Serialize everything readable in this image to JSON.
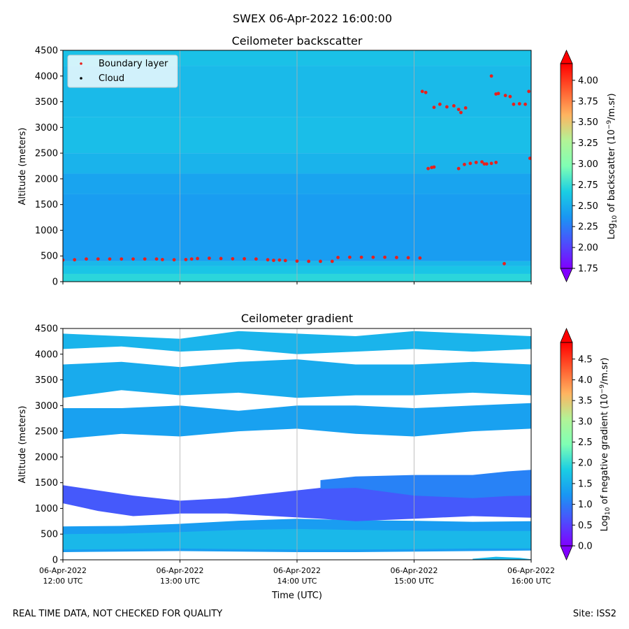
{
  "figure": {
    "suptitle": "SWEX 06-Apr-2022 16:00:00",
    "footer_left": "REAL TIME DATA, NOT CHECKED FOR QUALITY",
    "footer_right": "Site: ISS2"
  },
  "chart_data": [
    {
      "type": "heatmap",
      "title": "Ceilometer backscatter",
      "xlabel": "",
      "ylabel": "Altitude (meters)",
      "xlim": [
        12.0,
        16.0
      ],
      "ylim": [
        0,
        4500
      ],
      "x_ticks": [
        {
          "x": 12,
          "line1": "06-Apr-2022",
          "line2": "12:00 UTC"
        },
        {
          "x": 13,
          "line1": "06-Apr-2022",
          "line2": "13:00 UTC"
        },
        {
          "x": 14,
          "line1": "06-Apr-2022",
          "line2": "14:00 UTC"
        },
        {
          "x": 15,
          "line1": "06-Apr-2022",
          "line2": "15:00 UTC"
        },
        {
          "x": 16,
          "line1": "06-Apr-2022",
          "line2": "16:00 UTC"
        }
      ],
      "x_ticklabels_visible": false,
      "y_ticks": [
        0,
        500,
        1000,
        1500,
        2000,
        2500,
        3000,
        3500,
        4000,
        4500
      ],
      "grid": "vertical",
      "colormap": "rainbow",
      "colorbar": {
        "label_pre": "Log",
        "label_sub": "10",
        "label_mid": " of backscatter (10",
        "label_sup": "−9",
        "label_post": "/m.sr)",
        "range": [
          1.75,
          4.2
        ],
        "ticks": [
          "4.00",
          "3.75",
          "3.50",
          "3.25",
          "3.00",
          "2.75",
          "2.50",
          "2.25",
          "2.00",
          "1.75"
        ],
        "tick_values": [
          4.0,
          3.75,
          3.5,
          3.25,
          3.0,
          2.75,
          2.5,
          2.25,
          2.0,
          1.75
        ],
        "extend": "both"
      },
      "field_layers": [
        {
          "y_min": 0,
          "y_max": 150,
          "value": 2.72
        },
        {
          "y_min": 150,
          "y_max": 300,
          "value": 2.62
        },
        {
          "y_min": 300,
          "y_max": 400,
          "value": 2.55
        },
        {
          "y_min": 400,
          "y_max": 1700,
          "value": 2.4
        },
        {
          "y_min": 1700,
          "y_max": 2100,
          "value": 2.44
        },
        {
          "y_min": 2100,
          "y_max": 2500,
          "value": 2.52
        },
        {
          "y_min": 2500,
          "y_max": 3200,
          "value": 2.58
        },
        {
          "y_min": 3200,
          "y_max": 4200,
          "value": 2.56
        },
        {
          "y_min": 4200,
          "y_max": 4500,
          "value": 2.6
        }
      ],
      "legend": {
        "position": "upper-left",
        "entries": [
          {
            "label": "Boundary layer",
            "color": "#e8201c"
          },
          {
            "label": "Cloud",
            "color": "#000000"
          }
        ]
      },
      "series": [
        {
          "name": "Boundary layer",
          "kind": "scatter",
          "color": "#e8201c",
          "points": [
            [
              12.0,
              420
            ],
            [
              12.1,
              425
            ],
            [
              12.2,
              440
            ],
            [
              12.3,
              440
            ],
            [
              12.4,
              440
            ],
            [
              12.5,
              440
            ],
            [
              12.6,
              440
            ],
            [
              12.7,
              440
            ],
            [
              12.8,
              440
            ],
            [
              12.85,
              430
            ],
            [
              12.95,
              425
            ],
            [
              13.05,
              430
            ],
            [
              13.1,
              440
            ],
            [
              13.15,
              450
            ],
            [
              13.25,
              455
            ],
            [
              13.35,
              450
            ],
            [
              13.45,
              445
            ],
            [
              13.55,
              445
            ],
            [
              13.65,
              440
            ],
            [
              13.75,
              425
            ],
            [
              13.8,
              415
            ],
            [
              13.85,
              420
            ],
            [
              13.9,
              410
            ],
            [
              14.0,
              400
            ],
            [
              14.1,
              395
            ],
            [
              14.2,
              395
            ],
            [
              14.3,
              395
            ],
            [
              14.35,
              470
            ],
            [
              14.45,
              475
            ],
            [
              14.55,
              475
            ],
            [
              14.65,
              475
            ],
            [
              14.75,
              475
            ],
            [
              14.85,
              470
            ],
            [
              14.95,
              465
            ],
            [
              15.05,
              460
            ],
            [
              15.07,
              3700
            ],
            [
              15.1,
              3680
            ],
            [
              15.12,
              2200
            ],
            [
              15.15,
              2220
            ],
            [
              15.17,
              2230
            ],
            [
              15.17,
              3390
            ],
            [
              15.22,
              3450
            ],
            [
              15.28,
              3400
            ],
            [
              15.34,
              3420
            ],
            [
              15.38,
              3350
            ],
            [
              15.4,
              3290
            ],
            [
              15.44,
              3380
            ],
            [
              15.38,
              2200
            ],
            [
              15.43,
              2280
            ],
            [
              15.48,
              2300
            ],
            [
              15.53,
              2320
            ],
            [
              15.58,
              2330
            ],
            [
              15.6,
              2290
            ],
            [
              15.62,
              2290
            ],
            [
              15.66,
              2300
            ],
            [
              15.7,
              2320
            ],
            [
              15.66,
              4000
            ],
            [
              15.7,
              3650
            ],
            [
              15.72,
              3660
            ],
            [
              15.78,
              3620
            ],
            [
              15.82,
              3600
            ],
            [
              15.85,
              3450
            ],
            [
              15.9,
              3460
            ],
            [
              15.95,
              3450
            ],
            [
              15.98,
              3700
            ],
            [
              15.99,
              2400
            ],
            [
              15.77,
              350
            ]
          ]
        },
        {
          "name": "Cloud",
          "kind": "scatter",
          "color": "#000000",
          "points": []
        }
      ]
    },
    {
      "type": "heatmap",
      "title": "Ceilometer gradient",
      "xlabel": "Time (UTC)",
      "ylabel": "Altitude (meters)",
      "xlim": [
        12.0,
        16.0
      ],
      "ylim": [
        0,
        4500
      ],
      "x_ticks": [
        {
          "x": 12,
          "line1": "06-Apr-2022",
          "line2": "12:00 UTC"
        },
        {
          "x": 13,
          "line1": "06-Apr-2022",
          "line2": "13:00 UTC"
        },
        {
          "x": 14,
          "line1": "06-Apr-2022",
          "line2": "14:00 UTC"
        },
        {
          "x": 15,
          "line1": "06-Apr-2022",
          "line2": "15:00 UTC"
        },
        {
          "x": 16,
          "line1": "06-Apr-2022",
          "line2": "16:00 UTC"
        }
      ],
      "x_ticklabels_visible": true,
      "y_ticks": [
        0,
        500,
        1000,
        1500,
        2000,
        2500,
        3000,
        3500,
        4000,
        4500
      ],
      "grid": "vertical",
      "colormap": "rainbow",
      "colorbar": {
        "label_pre": "Log",
        "label_sub": "10",
        "label_mid": " of negative gradient (10",
        "label_sup": "−9",
        "label_post": "/m.sr)",
        "range": [
          0.0,
          4.9
        ],
        "ticks": [
          "4.5",
          "4.0",
          "3.5",
          "3.0",
          "2.5",
          "2.0",
          "1.5",
          "1.0",
          "0.5",
          "0.0"
        ],
        "tick_values": [
          4.5,
          4.0,
          3.5,
          3.0,
          2.5,
          2.0,
          1.5,
          1.0,
          0.5,
          0.0
        ],
        "extend": "both"
      },
      "bands": [
        {
          "value": 1.3,
          "x": [
            12.0,
            12.5,
            13.0,
            13.5,
            14.0,
            14.5,
            15.0,
            15.5,
            16.0
          ],
          "bottom": [
            150,
            160,
            170,
            160,
            150,
            150,
            160,
            170,
            180
          ],
          "top": [
            650,
            660,
            700,
            760,
            800,
            770,
            760,
            740,
            750
          ]
        },
        {
          "value": 1.6,
          "x": [
            12.0,
            12.5,
            13.0,
            13.5,
            14.0,
            14.5,
            15.0,
            15.5,
            16.0
          ],
          "bottom": [
            200,
            210,
            220,
            210,
            200,
            200,
            210,
            220,
            220
          ],
          "top": [
            500,
            510,
            540,
            580,
            600,
            580,
            570,
            560,
            560
          ]
        },
        {
          "value": 0.7,
          "x": [
            12.0,
            12.3,
            12.6,
            13.0,
            13.4,
            13.8,
            14.2,
            14.5,
            15.0,
            15.5,
            16.0
          ],
          "bottom": [
            1100,
            950,
            850,
            900,
            900,
            850,
            800,
            750,
            800,
            850,
            820
          ],
          "top": [
            1450,
            1350,
            1250,
            1150,
            1200,
            1300,
            1400,
            1500,
            1550,
            1550,
            1600
          ]
        },
        {
          "value": 1.05,
          "x": [
            14.2,
            14.5,
            15.0,
            15.5,
            15.8,
            16.0
          ],
          "bottom": [
            1380,
            1400,
            1250,
            1200,
            1240,
            1250
          ],
          "top": [
            1550,
            1620,
            1650,
            1650,
            1720,
            1750
          ]
        },
        {
          "value": 1.35,
          "x": [
            12.0,
            12.5,
            13.0,
            13.5,
            14.0,
            14.5,
            15.0,
            15.5,
            16.0
          ],
          "bottom": [
            2350,
            2450,
            2400,
            2500,
            2550,
            2450,
            2400,
            2500,
            2550
          ],
          "top": [
            2950,
            2950,
            3000,
            2900,
            3000,
            3000,
            2950,
            3000,
            3050
          ]
        },
        {
          "value": 1.45,
          "x": [
            12.0,
            12.5,
            13.0,
            13.5,
            14.0,
            14.5,
            15.0,
            15.5,
            16.0
          ],
          "bottom": [
            3150,
            3300,
            3200,
            3250,
            3150,
            3200,
            3200,
            3250,
            3200
          ],
          "top": [
            3800,
            3850,
            3750,
            3850,
            3900,
            3800,
            3800,
            3850,
            3800
          ]
        },
        {
          "value": 1.55,
          "x": [
            12.0,
            12.5,
            13.0,
            13.5,
            14.0,
            14.5,
            15.0,
            15.5,
            16.0
          ],
          "bottom": [
            4100,
            4150,
            4050,
            4100,
            4000,
            4050,
            4100,
            4050,
            4100
          ],
          "top": [
            4400,
            4350,
            4300,
            4450,
            4400,
            4350,
            4450,
            4400,
            4350
          ]
        },
        {
          "value": 1.6,
          "x": [
            15.5,
            15.7,
            15.9,
            16.0
          ],
          "bottom": [
            0,
            0,
            0,
            0
          ],
          "top": [
            20,
            60,
            40,
            10
          ]
        }
      ]
    }
  ]
}
